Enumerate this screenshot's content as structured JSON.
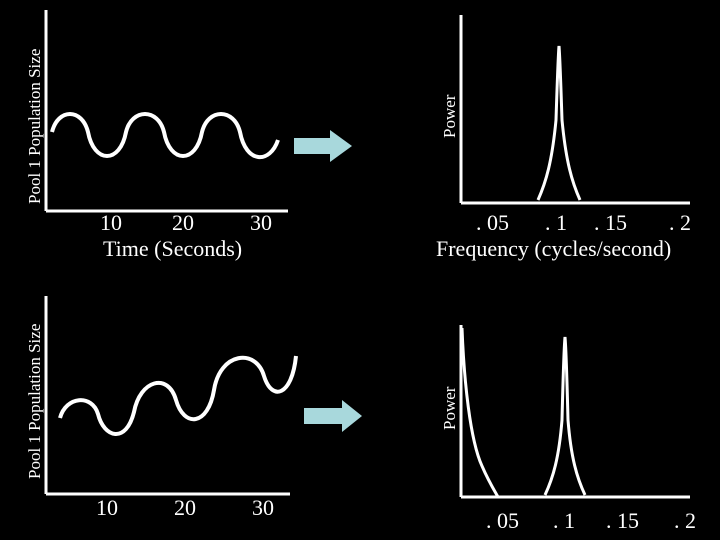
{
  "top_left": {
    "ylabel": "Pool 1 Population Size",
    "xlabel": "Time (Seconds)",
    "xticks": [
      "10",
      "20",
      "30"
    ]
  },
  "top_right": {
    "ylabel": "Power",
    "xlabel": "Frequency (cycles/second)",
    "xticks": [
      ". 05",
      ". 1",
      ". 15",
      ". 2"
    ]
  },
  "bottom_left": {
    "ylabel": "Pool 1 Population Size",
    "xticks": [
      "10",
      "20",
      "30"
    ]
  },
  "bottom_right": {
    "ylabel": "Power",
    "xticks": [
      ". 05",
      ". 1",
      ". 15",
      ". 2"
    ]
  },
  "colors": {
    "background": "#000000",
    "stroke": "#ffffff",
    "arrow": "#a8d8dc"
  }
}
